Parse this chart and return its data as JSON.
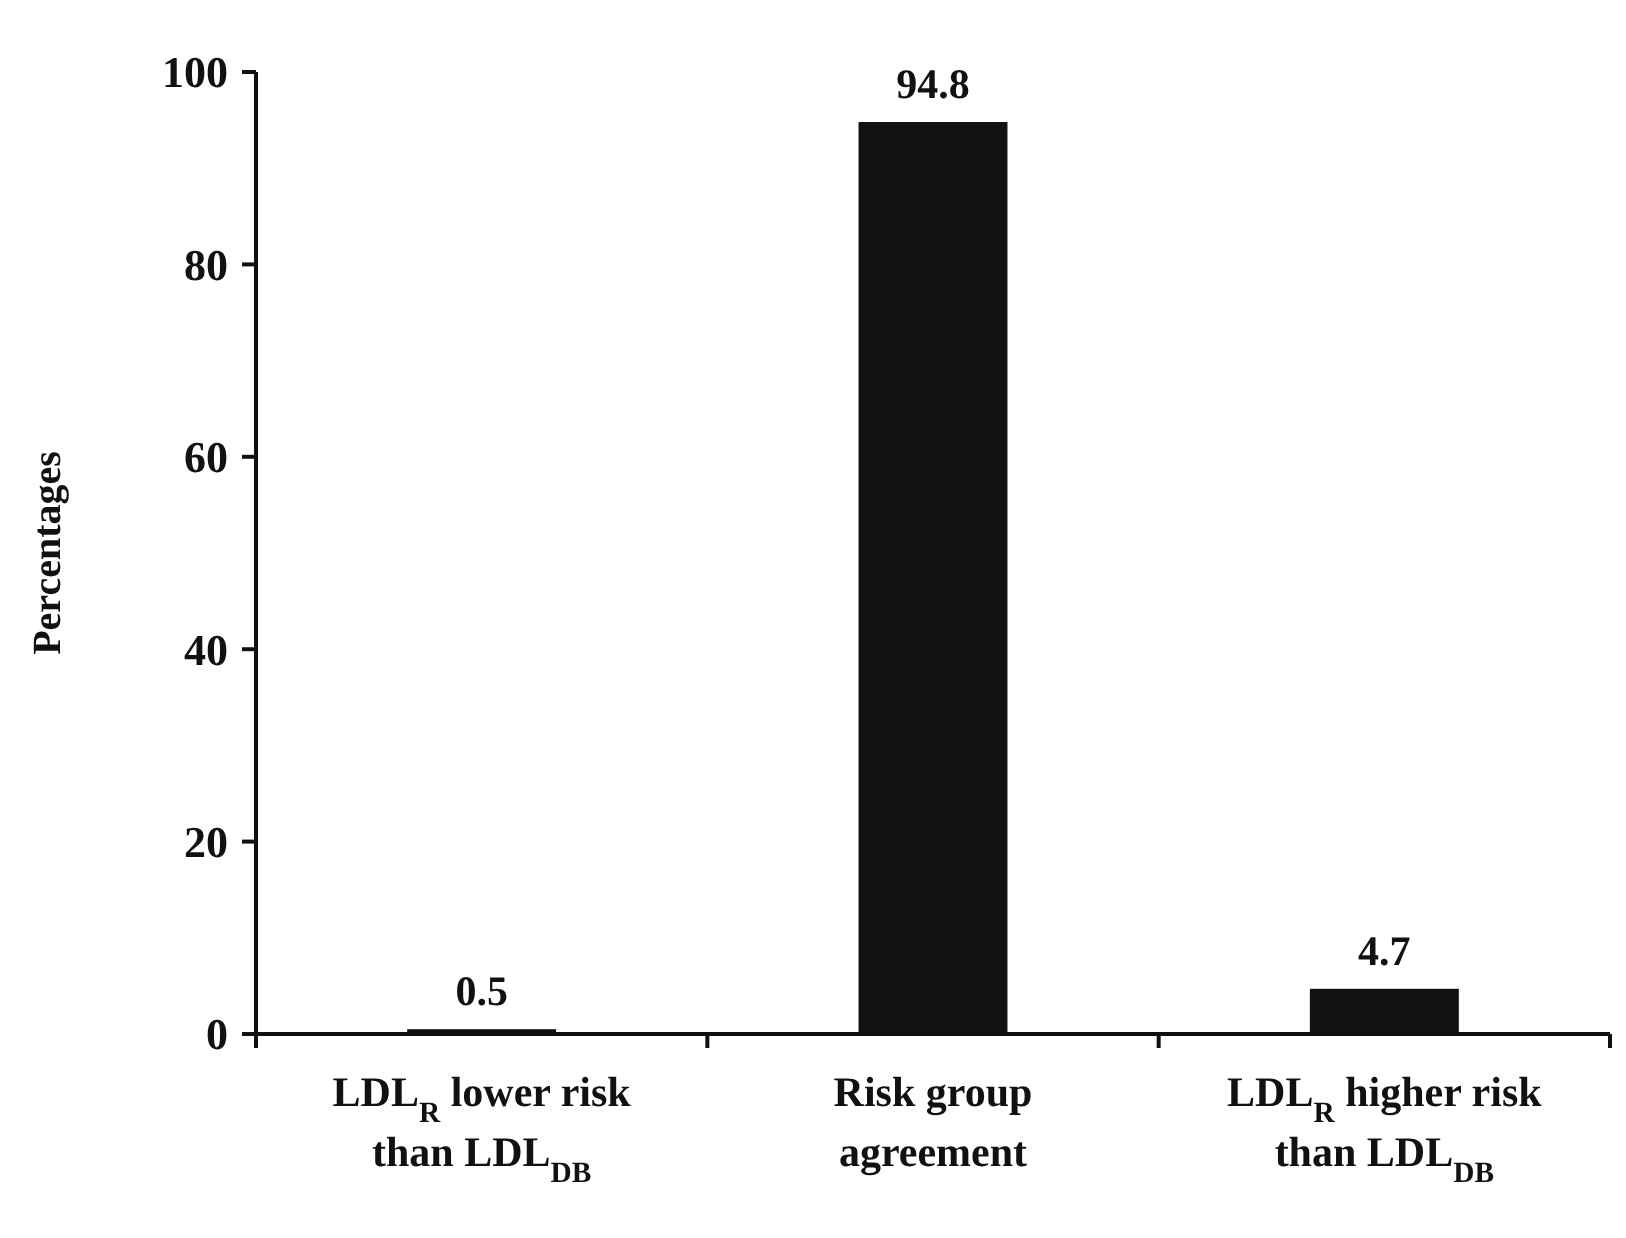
{
  "chart_data": {
    "type": "bar",
    "ylabel": "Percentages",
    "categories": [
      "LDL$_{R}$ lower risk\nthan LDL$_{DB}$",
      "Risk group\nagreement",
      "LDL$_{R}$ higher risk\nthan LDL$_{DB}$"
    ],
    "values": [
      0.5,
      94.8,
      4.7
    ],
    "color": "#111111",
    "ylim": [
      0,
      100
    ],
    "yticks": [
      0,
      20,
      40,
      60,
      80,
      100
    ],
    "data_labels": true,
    "grid": false
  }
}
